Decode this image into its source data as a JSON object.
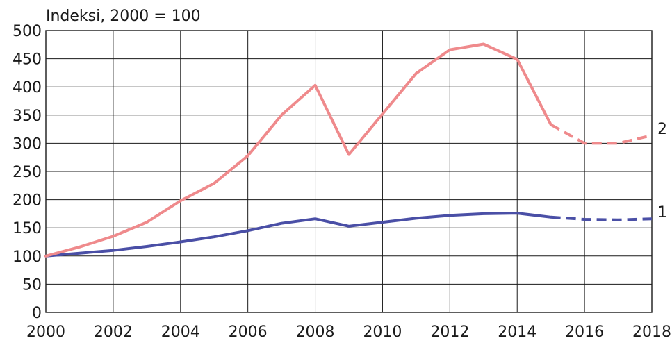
{
  "chart_data": {
    "type": "line",
    "title": "",
    "ylabel": "Indeksi, 2000 = 100",
    "xlabel": "",
    "xlim": [
      2000,
      2018
    ],
    "ylim": [
      0,
      500
    ],
    "x_ticks": [
      2000,
      2002,
      2004,
      2006,
      2008,
      2010,
      2012,
      2014,
      2016,
      2018
    ],
    "y_ticks": [
      0,
      50,
      100,
      150,
      200,
      250,
      300,
      350,
      400,
      450,
      500
    ],
    "grid": true,
    "legend": "none",
    "series": [
      {
        "label": "1",
        "color": "#4a4fa6",
        "forecast_from": 2015,
        "points": [
          [
            2000,
            100
          ],
          [
            2001,
            105
          ],
          [
            2002,
            110
          ],
          [
            2003,
            117
          ],
          [
            2004,
            125
          ],
          [
            2005,
            134
          ],
          [
            2006,
            145
          ],
          [
            2007,
            158
          ],
          [
            2008,
            166
          ],
          [
            2009,
            153
          ],
          [
            2010,
            160
          ],
          [
            2011,
            167
          ],
          [
            2012,
            172
          ],
          [
            2013,
            175
          ],
          [
            2014,
            176
          ],
          [
            2015,
            169
          ],
          [
            2016,
            165
          ],
          [
            2017,
            164
          ],
          [
            2018,
            166
          ]
        ]
      },
      {
        "label": "2",
        "color": "#ef8a8c",
        "forecast_from": 2015,
        "points": [
          [
            2000,
            100
          ],
          [
            2001,
            116
          ],
          [
            2002,
            135
          ],
          [
            2003,
            160
          ],
          [
            2004,
            198
          ],
          [
            2005,
            229
          ],
          [
            2006,
            278
          ],
          [
            2007,
            350
          ],
          [
            2008,
            403
          ],
          [
            2009,
            280
          ],
          [
            2010,
            352
          ],
          [
            2011,
            424
          ],
          [
            2012,
            466
          ],
          [
            2013,
            476
          ],
          [
            2014,
            449
          ],
          [
            2015,
            333
          ],
          [
            2016,
            300
          ],
          [
            2017,
            300
          ],
          [
            2018,
            314
          ]
        ]
      }
    ]
  }
}
